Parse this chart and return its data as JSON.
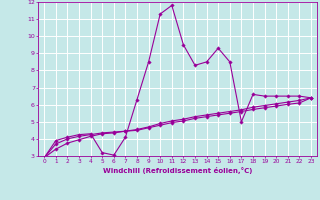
{
  "xlabel": "Windchill (Refroidissement éolien,°C)",
  "xlim": [
    -0.5,
    23.5
  ],
  "ylim": [
    3,
    12
  ],
  "xticks": [
    0,
    1,
    2,
    3,
    4,
    5,
    6,
    7,
    8,
    9,
    10,
    11,
    12,
    13,
    14,
    15,
    16,
    17,
    18,
    19,
    20,
    21,
    22,
    23
  ],
  "yticks": [
    3,
    4,
    5,
    6,
    7,
    8,
    9,
    10,
    11,
    12
  ],
  "background_color": "#c5e8e8",
  "grid_color": "#ffffff",
  "line_color": "#990099",
  "line1_x": [
    0,
    1,
    2,
    3,
    4,
    5,
    6,
    7,
    8,
    9,
    10,
    11,
    12,
    13,
    14,
    15,
    16,
    17,
    18,
    19,
    20,
    21,
    22,
    23
  ],
  "line1_y": [
    2.9,
    3.9,
    4.1,
    4.25,
    4.3,
    3.2,
    3.05,
    4.1,
    6.3,
    8.5,
    11.3,
    11.8,
    9.5,
    8.3,
    8.5,
    9.3,
    8.5,
    5.0,
    6.6,
    6.5,
    6.5,
    6.5,
    6.5,
    6.4
  ],
  "line2_x": [
    0,
    1,
    2,
    3,
    4,
    5,
    6,
    7,
    8,
    9,
    10,
    11,
    12,
    13,
    14,
    15,
    16,
    17,
    18,
    19,
    20,
    21,
    22,
    23
  ],
  "line2_y": [
    2.9,
    3.7,
    4.0,
    4.15,
    4.25,
    4.35,
    4.4,
    4.45,
    4.55,
    4.7,
    4.9,
    5.05,
    5.15,
    5.3,
    5.4,
    5.5,
    5.6,
    5.7,
    5.85,
    5.95,
    6.05,
    6.15,
    6.25,
    6.4
  ],
  "line3_x": [
    0,
    1,
    2,
    3,
    4,
    5,
    6,
    7,
    8,
    9,
    10,
    11,
    12,
    13,
    14,
    15,
    16,
    17,
    18,
    19,
    20,
    21,
    22,
    23
  ],
  "line3_y": [
    2.9,
    3.4,
    3.75,
    3.95,
    4.15,
    4.3,
    4.35,
    4.45,
    4.5,
    4.65,
    4.8,
    4.95,
    5.05,
    5.2,
    5.3,
    5.4,
    5.5,
    5.6,
    5.72,
    5.82,
    5.92,
    6.02,
    6.1,
    6.4
  ]
}
